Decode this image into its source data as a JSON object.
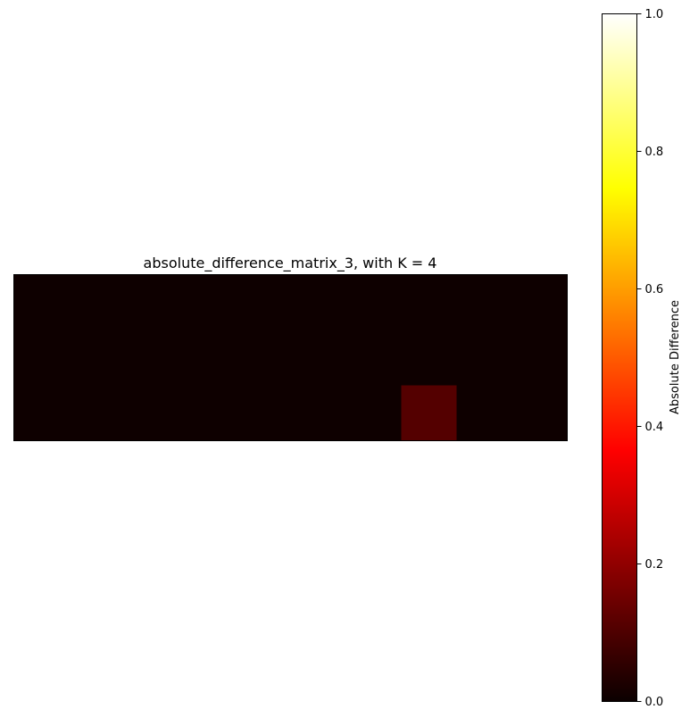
{
  "chart_data": {
    "type": "heatmap",
    "title": "absolute_difference_matrix_3, with K = 4",
    "colormap": "hot",
    "rows": 3,
    "cols": 10,
    "values": [
      [
        0.02,
        0.02,
        0.02,
        0.02,
        0.02,
        0.02,
        0.02,
        0.02,
        0.02,
        0.02
      ],
      [
        0.02,
        0.02,
        0.02,
        0.02,
        0.02,
        0.02,
        0.02,
        0.02,
        0.02,
        0.02
      ],
      [
        0.02,
        0.02,
        0.02,
        0.02,
        0.02,
        0.02,
        0.02,
        0.12,
        0.02,
        0.02
      ]
    ],
    "x_ticks": "none",
    "y_ticks": "none",
    "colorbar": {
      "label": "Absolute Difference",
      "range": [
        0,
        1
      ],
      "ticks": [
        "0.0",
        "0.2",
        "0.4",
        "0.6",
        "0.8",
        "1.0"
      ]
    }
  }
}
